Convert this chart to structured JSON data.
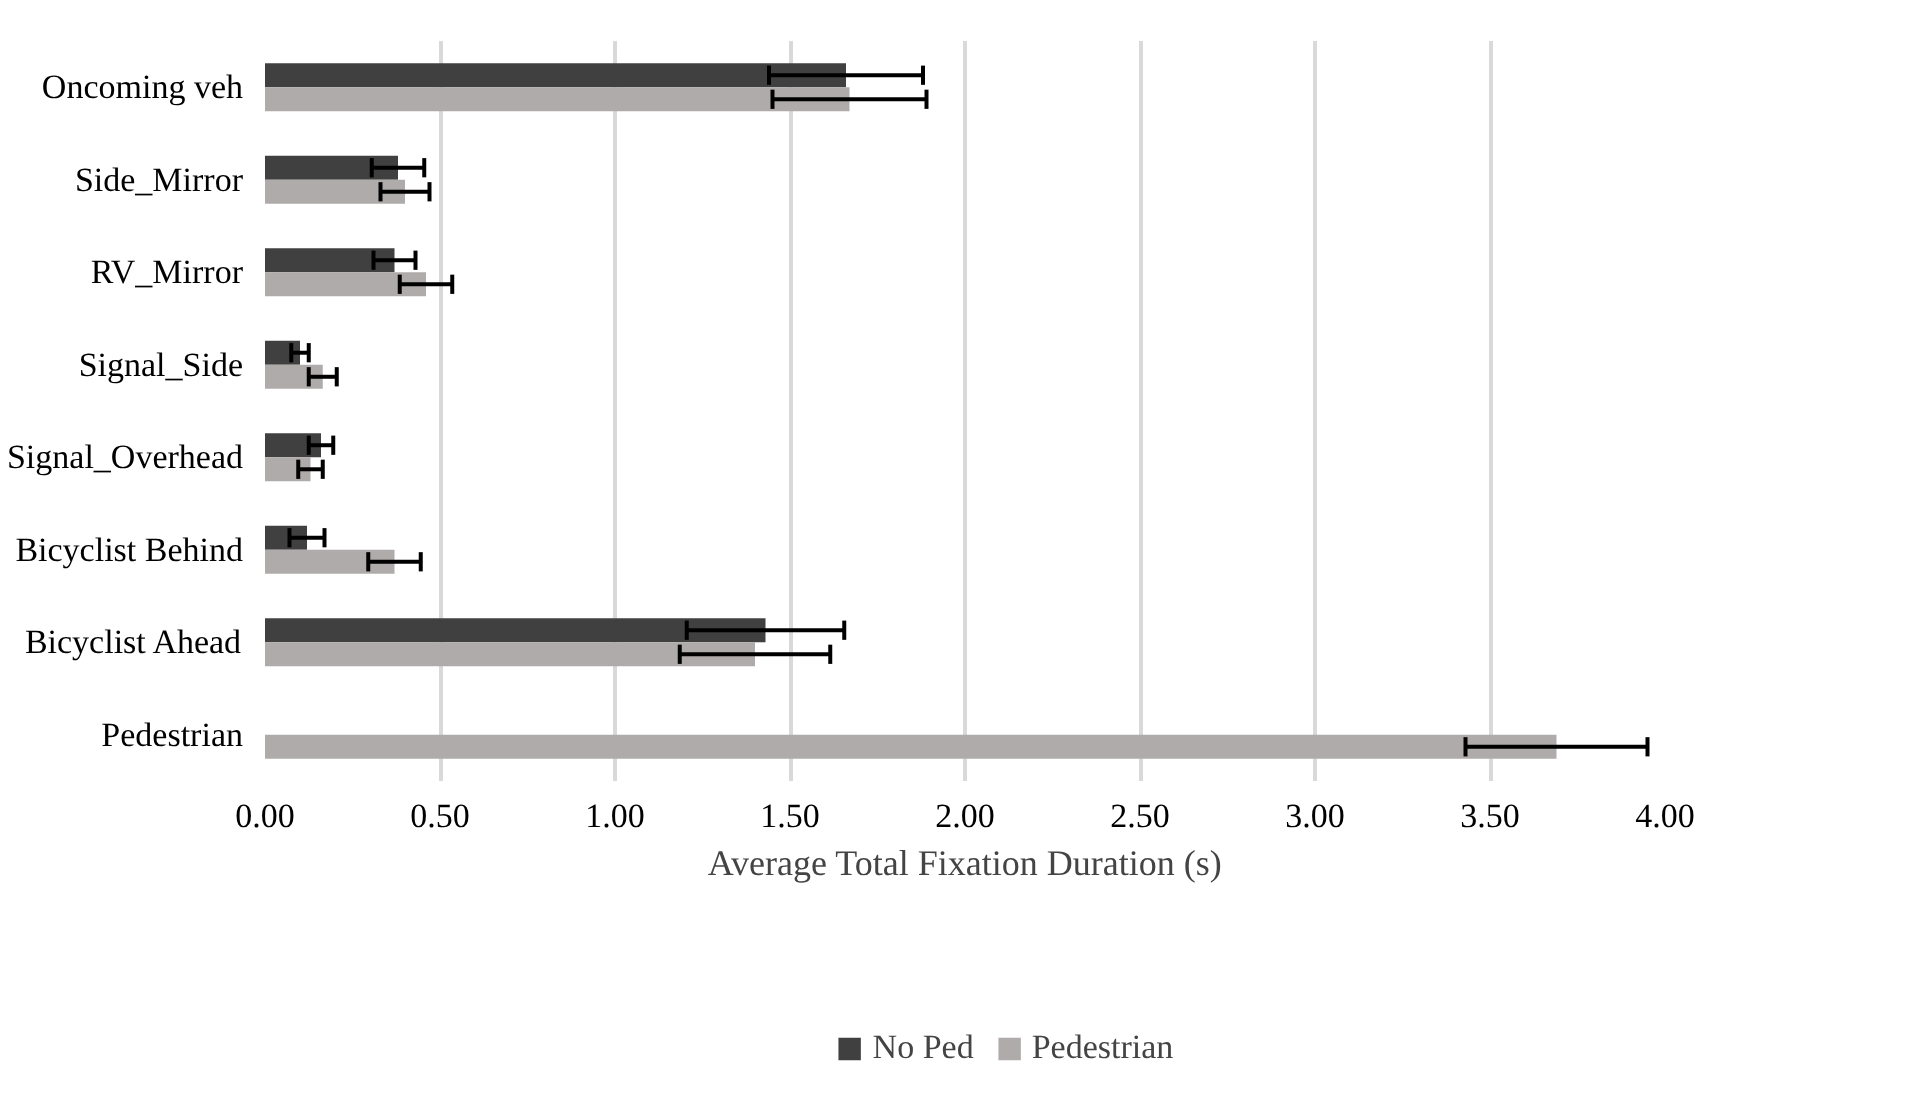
{
  "chart_data": {
    "type": "bar",
    "orientation": "horizontal",
    "xlabel": "Average Total Fixation Duration (s)",
    "categories": [
      "Oncoming veh",
      "Side_Mirror",
      "RV_Mirror",
      "Signal_Side",
      "Signal_Overhead",
      "Bicyclist Behind",
      "Bicyclist Ahead",
      "Pedestrian"
    ],
    "series": [
      {
        "name": "No Ped",
        "color": "#404040",
        "values": [
          1.66,
          0.38,
          0.37,
          0.1,
          0.16,
          0.12,
          1.43,
          null
        ],
        "errors": [
          0.22,
          0.075,
          0.06,
          0.025,
          0.035,
          0.05,
          0.225,
          null
        ]
      },
      {
        "name": "Pedestrian",
        "color": "#afabab",
        "values": [
          1.67,
          0.4,
          0.46,
          0.165,
          0.13,
          0.37,
          1.4,
          3.69
        ],
        "errors": [
          0.22,
          0.07,
          0.075,
          0.04,
          0.035,
          0.075,
          0.215,
          0.26
        ]
      }
    ],
    "xlim": [
      0,
      4
    ],
    "xticks": [
      {
        "value": 0,
        "label": "0.00"
      },
      {
        "value": 0.5,
        "label": "0.50"
      },
      {
        "value": 1,
        "label": "1.00"
      },
      {
        "value": 1.5,
        "label": "1.50"
      },
      {
        "value": 2,
        "label": "2.00"
      },
      {
        "value": 2.5,
        "label": "2.50"
      },
      {
        "value": 3,
        "label": "3.00"
      },
      {
        "value": 3.5,
        "label": "3.50"
      },
      {
        "value": 4,
        "label": "4.00"
      }
    ],
    "grid": "x",
    "legend": "bottom"
  }
}
